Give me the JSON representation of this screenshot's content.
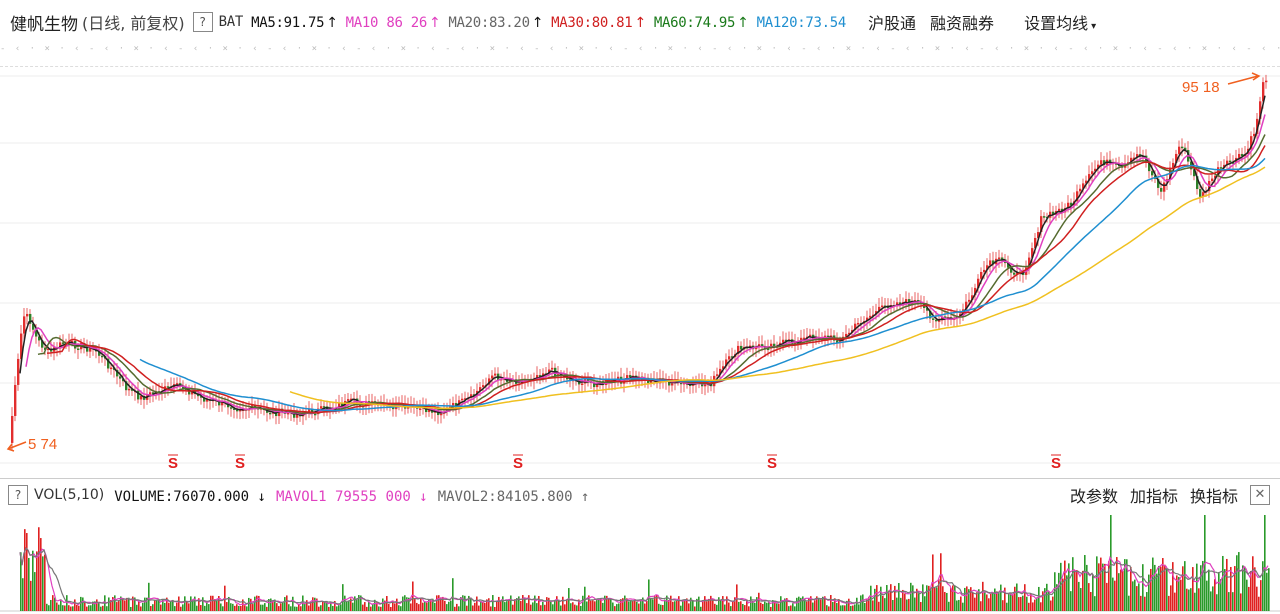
{
  "header": {
    "title": "健帆生物",
    "subtitle": "(日线, 前复权)",
    "help": "?",
    "mode": "BAT",
    "ma_items": [
      {
        "label": "MA5:91.75",
        "arrow": "↑",
        "color": "#111111",
        "arrow_color": "#111111"
      },
      {
        "label": "MA10 86 26",
        "arrow": "↑",
        "color": "#e040c0",
        "arrow_color": "#e040c0"
      },
      {
        "label": "MA20:83.20",
        "arrow": "↑",
        "color": "#666666",
        "arrow_color": "#111111"
      },
      {
        "label": "MA30:80.81",
        "arrow": "↑",
        "color": "#d02020",
        "arrow_color": "#d02020"
      },
      {
        "label": "MA60:74.95",
        "arrow": "↑",
        "color": "#1a7a1a",
        "arrow_color": "#1a7a1a"
      },
      {
        "label": "MA120:73.54",
        "arrow": "",
        "color": "#1f8fd0",
        "arrow_color": "#1f8fd0"
      }
    ],
    "buttons": {
      "hk_connect": "沪股通",
      "margin": "融资融券",
      "ma_settings": "设置均线"
    },
    "caret": "▾"
  },
  "price_chart": {
    "high_label": "95 18",
    "low_label": "5 74",
    "marker": "S",
    "marker_count": 5,
    "colors": {
      "up": "#e02020",
      "down": "#e02020",
      "ma5": "#222222",
      "ma10": "#e040c0",
      "ma20": "#556b2f",
      "ma30": "#d02020",
      "ma60": "#1f8fd0",
      "ma120": "#f0c020",
      "annot": "#f06020"
    }
  },
  "volume_panel": {
    "help": "?",
    "label": "VOL(5,10)",
    "items": [
      {
        "label": "VOLUME:76070.000",
        "arrow": "↓",
        "color": "#111111"
      },
      {
        "label": "MAVOL1 79555 000",
        "arrow": "↓",
        "color": "#e040c0"
      },
      {
        "label": "MAVOL2:84105.800",
        "arrow": "↑",
        "color": "#666666"
      }
    ],
    "buttons": {
      "change_params": "改参数",
      "add_indicator": "加指标",
      "switch_indicator": "换指标",
      "close": "✕"
    }
  }
}
